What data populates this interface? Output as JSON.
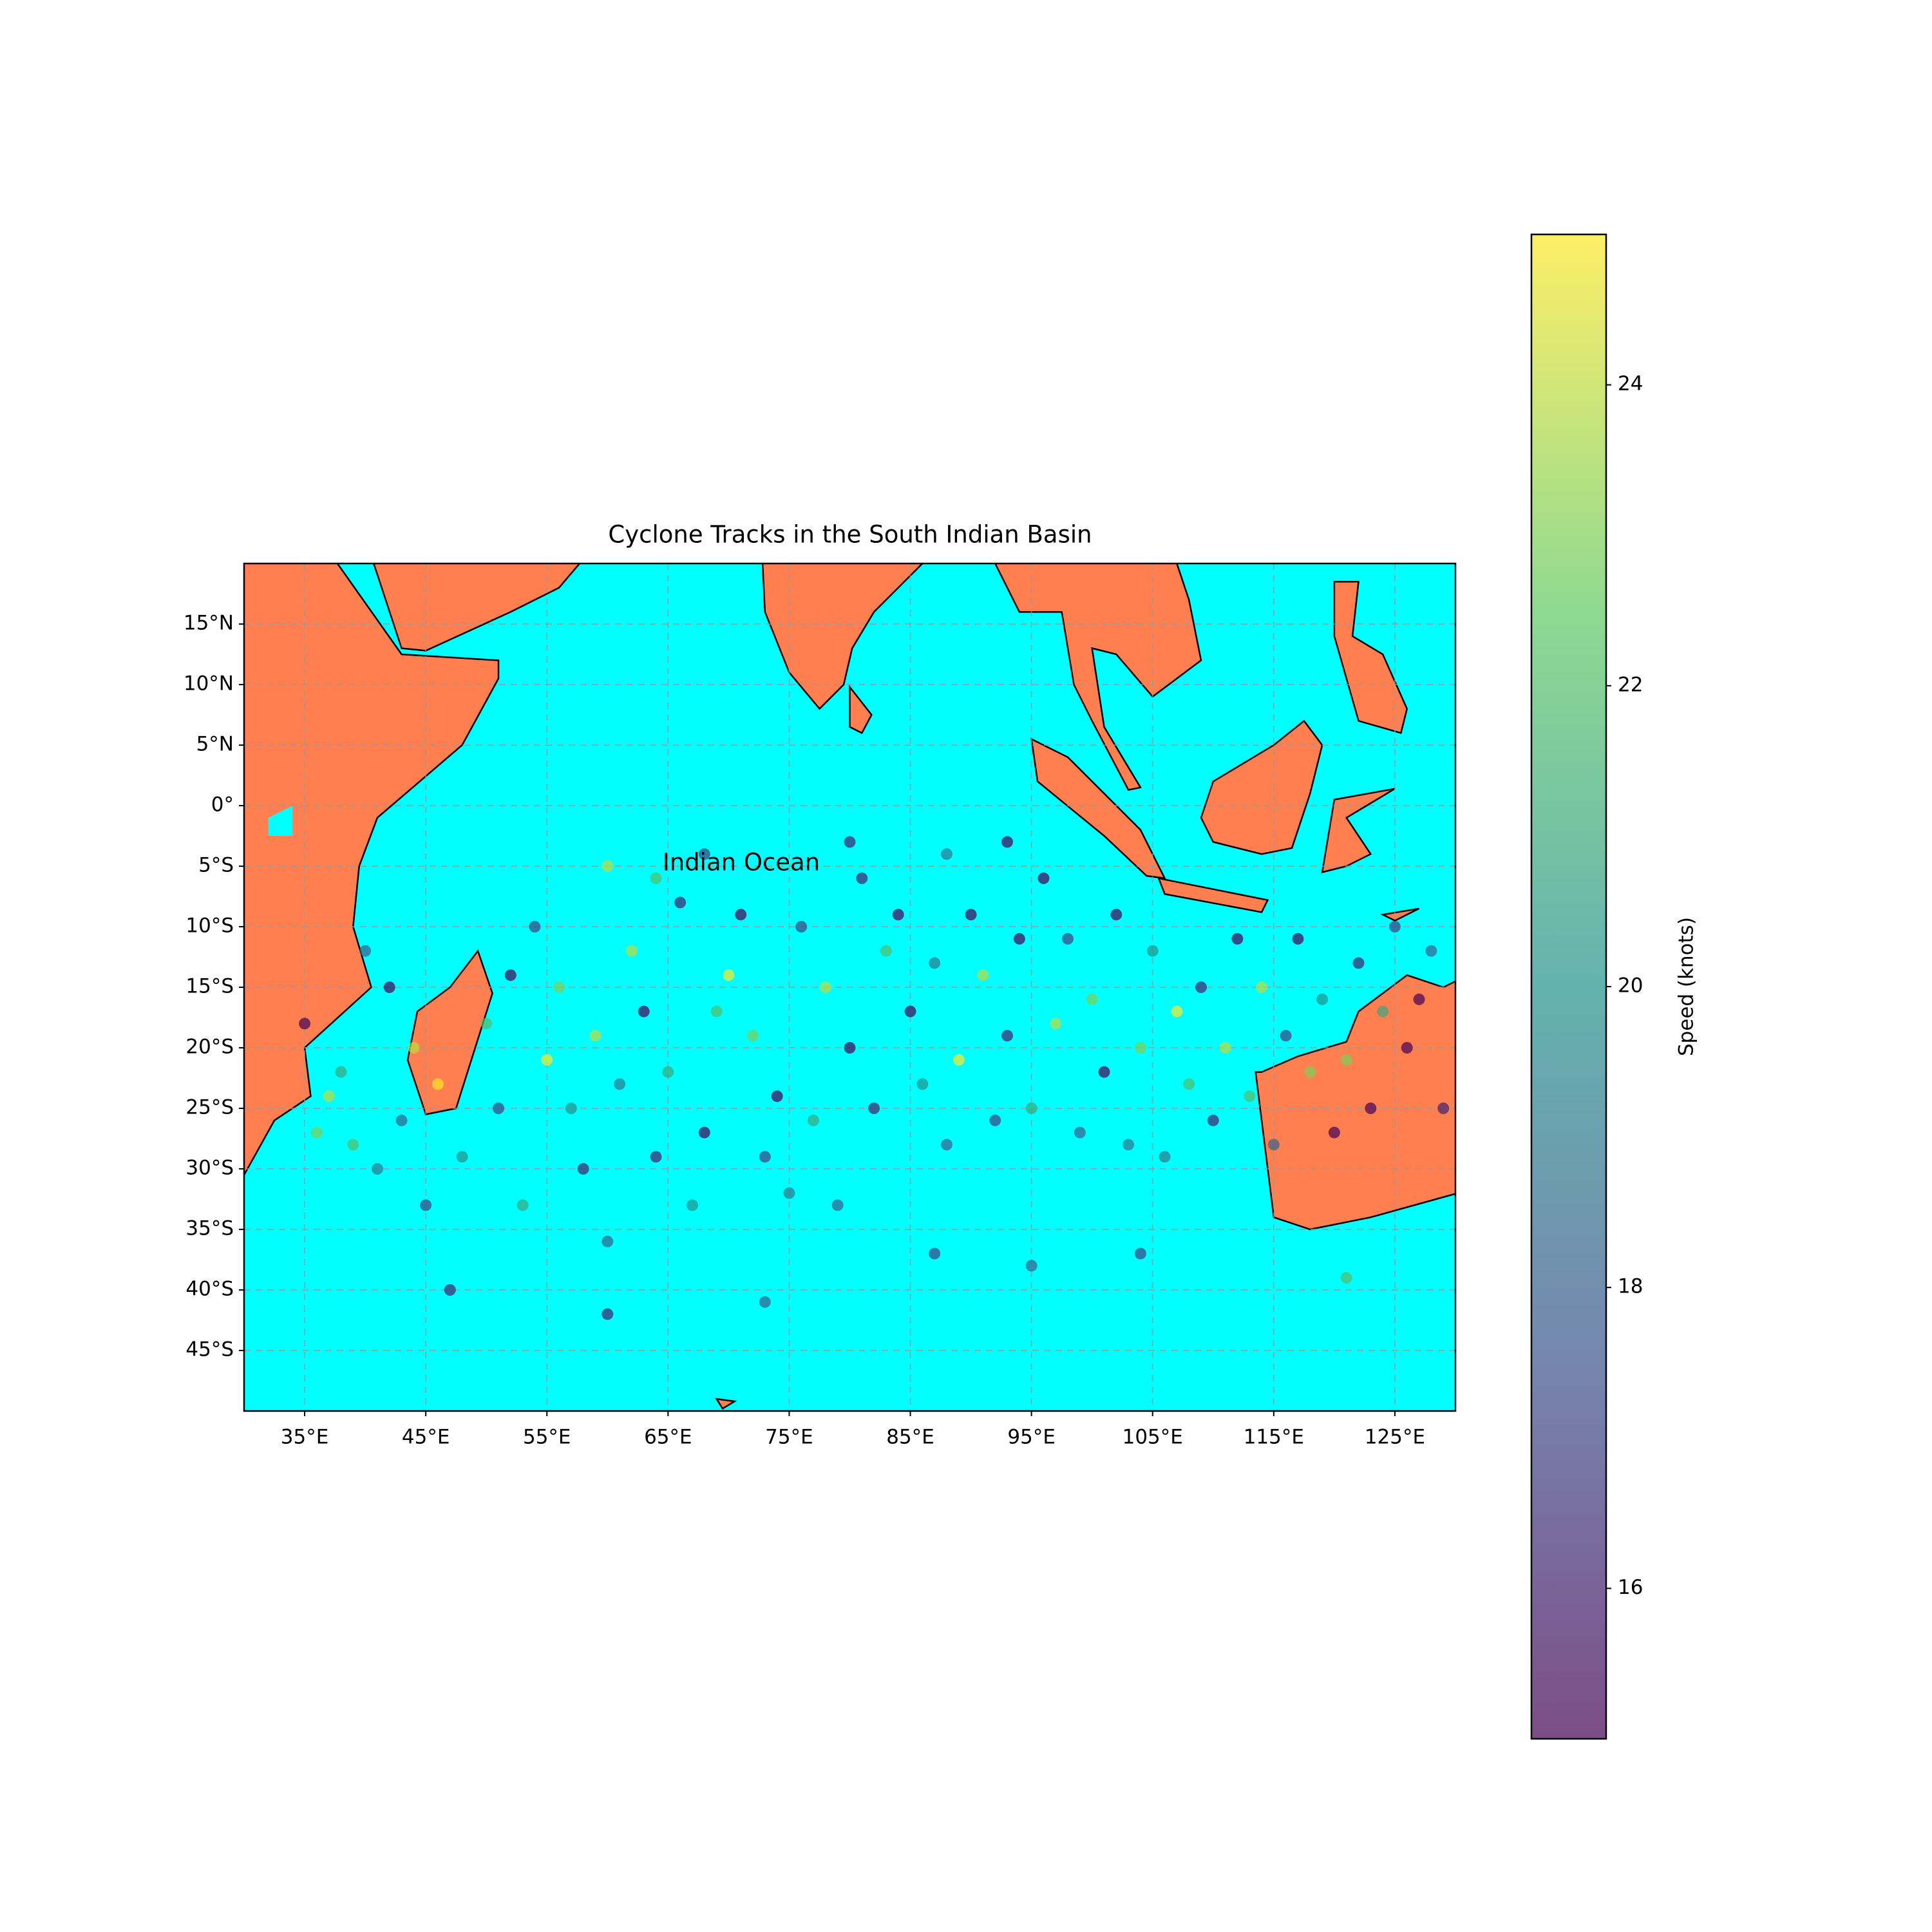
{
  "chart_data": {
    "type": "scatter",
    "title": "Cyclone Tracks in the South Indian Basin",
    "annotation": "Indian Ocean",
    "xlim": [
      30,
      130
    ],
    "ylim": [
      -50,
      20
    ],
    "xticks": [
      {
        "value": 35,
        "label": "35°E"
      },
      {
        "value": 45,
        "label": "45°E"
      },
      {
        "value": 55,
        "label": "55°E"
      },
      {
        "value": 65,
        "label": "65°E"
      },
      {
        "value": 75,
        "label": "75°E"
      },
      {
        "value": 85,
        "label": "85°E"
      },
      {
        "value": 95,
        "label": "95°E"
      },
      {
        "value": 105,
        "label": "105°E"
      },
      {
        "value": 115,
        "label": "115°E"
      },
      {
        "value": 125,
        "label": "125°E"
      }
    ],
    "yticks": [
      {
        "value": 15,
        "label": "15°N"
      },
      {
        "value": 10,
        "label": "10°N"
      },
      {
        "value": 5,
        "label": "5°N"
      },
      {
        "value": 0,
        "label": "0°"
      },
      {
        "value": -5,
        "label": "5°S"
      },
      {
        "value": -10,
        "label": "10°S"
      },
      {
        "value": -15,
        "label": "15°S"
      },
      {
        "value": -20,
        "label": "20°S"
      },
      {
        "value": -25,
        "label": "25°S"
      },
      {
        "value": -30,
        "label": "30°S"
      },
      {
        "value": -35,
        "label": "35°S"
      },
      {
        "value": -40,
        "label": "40°S"
      },
      {
        "value": -45,
        "label": "45°S"
      }
    ],
    "grid": true,
    "ocean_color": "#00ffff",
    "land_color": "#ff7f50",
    "colormap": "viridis",
    "colorbar": {
      "label": "Speed (knots)",
      "lim": [
        15,
        25
      ],
      "ticks": [
        16,
        18,
        20,
        22,
        24
      ]
    },
    "x": [
      40,
      42,
      44,
      38,
      36,
      41,
      45,
      47,
      50,
      52,
      54,
      55,
      57,
      58,
      60,
      62,
      63,
      65,
      66,
      68,
      70,
      72,
      74,
      75,
      76,
      78,
      80,
      81,
      83,
      85,
      86,
      88,
      90,
      91,
      93,
      95,
      96,
      98,
      100,
      101,
      103,
      105,
      107,
      108,
      110,
      112,
      114,
      116,
      118,
      120,
      122,
      124,
      126,
      128,
      129,
      35,
      37,
      39,
      43,
      46,
      48,
      51,
      53,
      56,
      59,
      61,
      64,
      67,
      69,
      71,
      73,
      77,
      79,
      82,
      84,
      87,
      89,
      92,
      94,
      97,
      99,
      102,
      104,
      106,
      109,
      111,
      113,
      115,
      117,
      119,
      121,
      123,
      125,
      127,
      60,
      64,
      68,
      80,
      88,
      93,
      95,
      60,
      87,
      121,
      104,
      73
    ],
    "values": [
      -12,
      -15,
      -20,
      -22,
      -27,
      -30,
      -33,
      -40,
      -18,
      -14,
      -10,
      -21,
      -25,
      -30,
      -36,
      -12,
      -17,
      -22,
      -8,
      -27,
      -14,
      -19,
      -24,
      -32,
      -10,
      -15,
      -20,
      -6,
      -12,
      -17,
      -23,
      -28,
      -9,
      -14,
      -19,
      -25,
      -6,
      -11,
      -16,
      -22,
      -28,
      -12,
      -17,
      -23,
      -26,
      -11,
      -15,
      -19,
      -22,
      -27,
      -13,
      -17,
      -20,
      -12,
      -25,
      -18,
      -24,
      -28,
      -26,
      -23,
      -29,
      -25,
      -33,
      -15,
      -19,
      -23,
      -29,
      -33,
      -17,
      -9,
      -29,
      -26,
      -33,
      -25,
      -9,
      -13,
      -21,
      -26,
      -11,
      -18,
      -27,
      -9,
      -20,
      -29,
      -15,
      -20,
      -24,
      -28,
      -11,
      -16,
      -21,
      -25,
      -10,
      -16,
      -5,
      -6,
      -4,
      -3,
      -4,
      -3,
      -38,
      -42,
      -37,
      -39,
      -37,
      -41
    ],
    "speed": [
      18,
      15,
      24,
      21,
      23,
      19,
      17,
      16,
      22,
      15,
      17,
      25,
      20,
      16,
      18,
      24,
      15,
      21,
      16,
      15,
      25,
      23,
      15,
      19,
      17,
      24,
      15,
      16,
      22,
      15,
      20,
      18,
      15,
      24,
      16,
      21,
      15,
      17,
      23,
      15,
      19,
      20,
      25,
      22,
      16,
      15,
      24,
      17,
      23,
      15,
      16,
      21,
      15,
      18,
      16,
      15,
      24,
      22,
      18,
      25,
      20,
      17,
      21,
      23,
      24,
      19,
      16,
      20,
      22,
      15,
      17,
      21,
      18,
      16,
      15,
      19,
      25,
      17,
      15,
      24,
      18,
      15,
      23,
      19,
      16,
      24,
      22,
      18,
      15,
      20,
      23,
      15,
      17,
      15,
      24,
      22,
      17,
      16,
      19,
      15,
      18,
      16,
      17,
      22,
      17,
      18
    ]
  }
}
